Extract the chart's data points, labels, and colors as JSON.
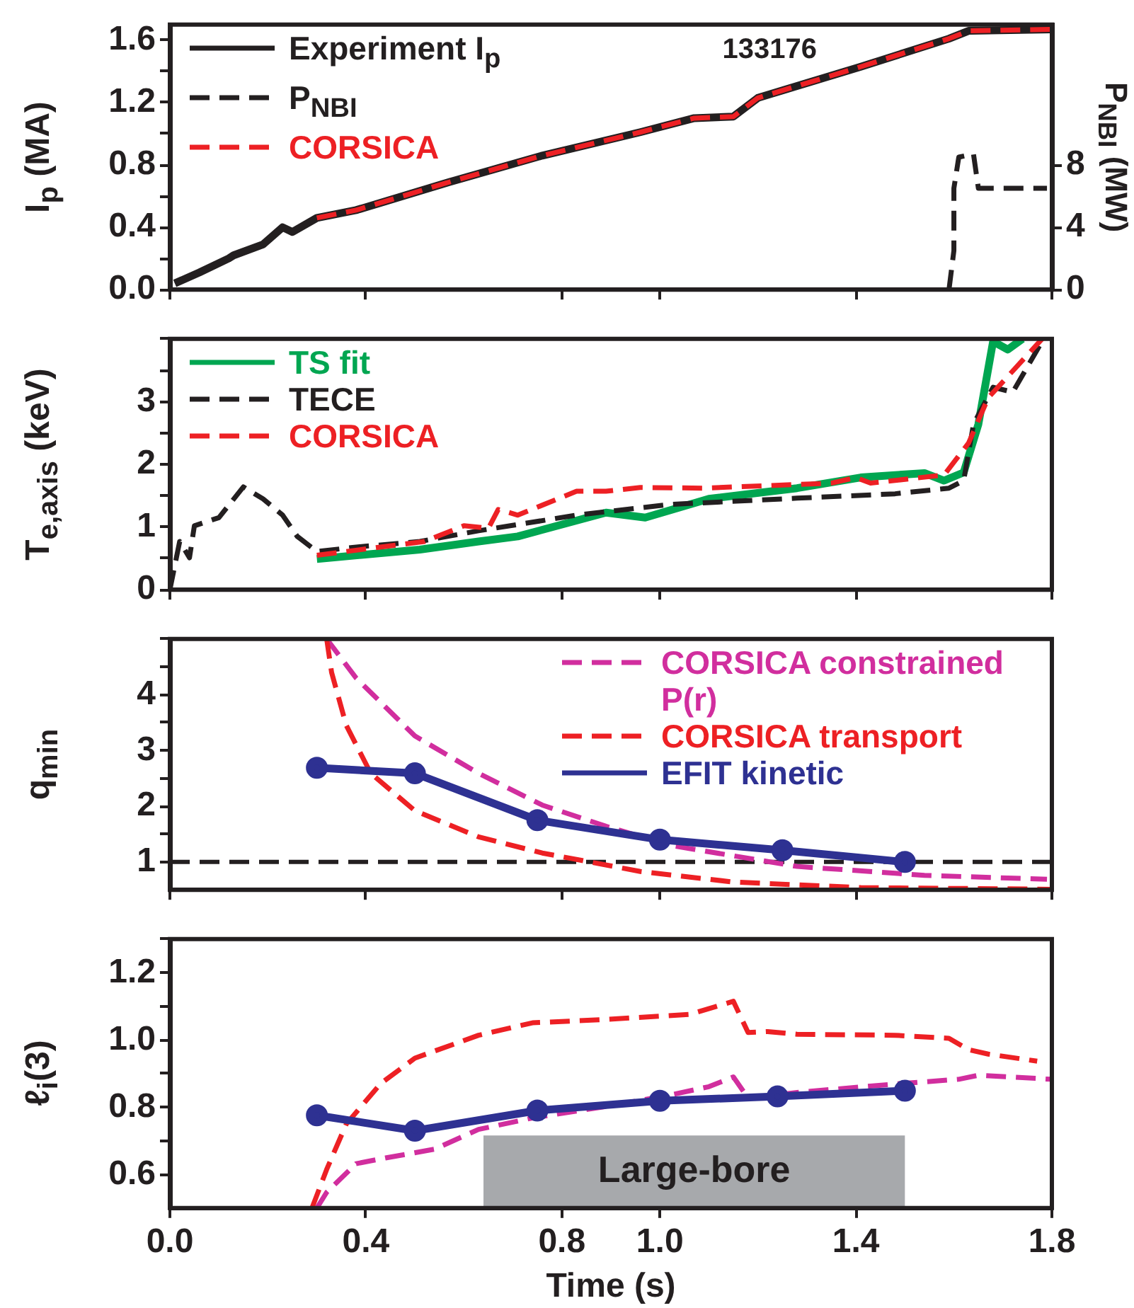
{
  "chart_data": [
    {
      "type": "line",
      "ylabel": "I$_{p}$ (MA)",
      "y2label": "P$_{NBI}$ (MW)",
      "annotations": [
        "133176"
      ],
      "xlim": [
        0,
        1.8
      ],
      "xticks": [
        {
          "value": 0,
          "label": null
        },
        {
          "value": 0.4,
          "label": null
        },
        {
          "value": 0.8,
          "label": null
        },
        {
          "value": 1.0,
          "label": null
        },
        {
          "value": 1.4,
          "label": null
        },
        {
          "value": 1.8,
          "label": null
        }
      ],
      "ylim": [
        0,
        1.7
      ],
      "yticks": [
        {
          "value": 0,
          "label": "0.0"
        },
        {
          "value": 0.2,
          "label": null
        },
        {
          "value": 0.4,
          "label": "0.4"
        },
        {
          "value": 0.6,
          "label": null
        },
        {
          "value": 0.8,
          "label": "0.8"
        },
        {
          "value": 1.0,
          "label": null
        },
        {
          "value": 1.2,
          "label": "1.2"
        },
        {
          "value": 1.4,
          "label": null
        },
        {
          "value": 1.6,
          "label": "1.6"
        }
      ],
      "y2lim": [
        0,
        17
      ],
      "y2ticks": [
        0,
        4,
        8
      ],
      "tick_labels": "y",
      "legend": "top left",
      "grid": false,
      "series": [
        {
          "name": "Experiment I$_{p}$",
          "color": "#231f20",
          "line_style": "solid",
          "marker": "none",
          "x": [
            0.01,
            0.06,
            0.12,
            0.13,
            0.19,
            0.23,
            0.25,
            0.3,
            0.38,
            0.57,
            0.76,
            0.96,
            1.07,
            1.15,
            1.2,
            1.41,
            1.59,
            1.63,
            1.8
          ],
          "values": [
            0.04,
            0.11,
            0.2,
            0.22,
            0.29,
            0.4,
            0.37,
            0.46,
            0.51,
            0.69,
            0.86,
            1.01,
            1.1,
            1.11,
            1.23,
            1.43,
            1.61,
            1.66,
            1.67
          ]
        },
        {
          "name": "P$_{NBI}$",
          "axis": "y2",
          "color": "#231f20",
          "line_style": "dashed",
          "marker": "none",
          "x": [
            1.59,
            1.6,
            1.6,
            1.61,
            1.64,
            1.65,
            1.79
          ],
          "values": [
            0,
            2.5,
            6.5,
            8.5,
            8.7,
            6.5,
            6.5
          ]
        },
        {
          "name": "CORSICA",
          "color": "#ed2024",
          "line_style": "dashed",
          "marker": "none",
          "x": [
            0.3,
            0.38,
            0.57,
            0.76,
            0.96,
            1.07,
            1.15,
            1.2,
            1.41,
            1.59,
            1.63,
            1.8
          ],
          "values": [
            0.46,
            0.51,
            0.69,
            0.86,
            1.01,
            1.1,
            1.11,
            1.23,
            1.43,
            1.61,
            1.66,
            1.67
          ]
        }
      ]
    },
    {
      "type": "line",
      "ylabel": "T$_{e,axis}$ (keV)",
      "xlim": [
        0,
        1.8
      ],
      "xticks": [
        {
          "value": 0,
          "label": null
        },
        {
          "value": 0.4,
          "label": null
        },
        {
          "value": 0.8,
          "label": null
        },
        {
          "value": 1.0,
          "label": null
        },
        {
          "value": 1.4,
          "label": null
        },
        {
          "value": 1.8,
          "label": null
        }
      ],
      "ylim": [
        0,
        4
      ],
      "yticks": [
        0,
        {
          "value": 0.5,
          "label": null
        },
        1,
        {
          "value": 1.5,
          "label": null
        },
        2,
        {
          "value": 2.5,
          "label": null
        },
        3,
        {
          "value": 3.5,
          "label": null
        },
        {
          "value": 4,
          "label": null
        }
      ],
      "tick_labels": "y",
      "legend": "top left",
      "grid": false,
      "series": [
        {
          "name": "TS fit",
          "color": "#00a651",
          "line_style": "solid",
          "marker": "none",
          "x": [
            0.3,
            0.51,
            0.63,
            0.71,
            0.89,
            0.97,
            1.1,
            1.28,
            1.41,
            1.54,
            1.58,
            1.62,
            1.65,
            1.68,
            1.71,
            1.74
          ],
          "values": [
            0.49,
            0.64,
            0.77,
            0.85,
            1.23,
            1.15,
            1.45,
            1.62,
            1.79,
            1.86,
            1.74,
            1.87,
            2.64,
            3.96,
            3.83,
            4.0
          ]
        },
        {
          "name": "TECE",
          "color": "#231f20",
          "line_style": "dashed",
          "marker": "none",
          "x": [
            0,
            0.02,
            0.04,
            0.05,
            0.1,
            0.15,
            0.19,
            0.23,
            0.26,
            0.3,
            0.38,
            0.51,
            0.63,
            0.83,
            1.02,
            1.28,
            1.48,
            1.59,
            1.62,
            1.64,
            1.68,
            1.72,
            1.78
          ],
          "values": [
            0,
            0.77,
            0.51,
            1.02,
            1.15,
            1.64,
            1.45,
            1.19,
            0.85,
            0.61,
            0.68,
            0.77,
            0.94,
            1.19,
            1.36,
            1.46,
            1.53,
            1.62,
            1.74,
            2.64,
            3.23,
            3.15,
            3.96
          ]
        },
        {
          "name": "CORSICA",
          "color": "#ed2024",
          "line_style": "dashed",
          "marker": "none",
          "x": [
            0.3,
            0.52,
            0.6,
            0.65,
            0.67,
            0.71,
            0.83,
            0.89,
            0.96,
            1.09,
            1.22,
            1.35,
            1.4,
            1.43,
            1.58,
            1.63,
            1.67,
            1.78
          ],
          "values": [
            0.55,
            0.77,
            1.02,
            0.98,
            1.28,
            1.19,
            1.57,
            1.57,
            1.63,
            1.62,
            1.66,
            1.7,
            1.79,
            1.7,
            1.83,
            2.34,
            3.06,
            4.0
          ]
        }
      ]
    },
    {
      "type": "line",
      "ylabel": "q$_{min}$",
      "xlim": [
        0,
        1.8
      ],
      "xticks": [
        {
          "value": 0,
          "label": null
        },
        {
          "value": 0.4,
          "label": null
        },
        {
          "value": 0.8,
          "label": null
        },
        {
          "value": 1.0,
          "label": null
        },
        {
          "value": 1.4,
          "label": null
        },
        {
          "value": 1.8,
          "label": null
        }
      ],
      "ylim": [
        0.5,
        5
      ],
      "yticks": [
        1,
        {
          "value": 1.5,
          "label": null
        },
        2,
        {
          "value": 2.5,
          "label": null
        },
        3,
        {
          "value": 3.5,
          "label": null
        },
        4,
        {
          "value": 4.5,
          "label": null
        },
        {
          "value": 5,
          "label": null
        }
      ],
      "tick_labels": "y",
      "legend": "top right",
      "grid": false,
      "ref_lines": [
        {
          "axis": "y",
          "value": 1,
          "color": "#231f20",
          "line_style": "dashed"
        }
      ],
      "series": [
        {
          "name": "CORSICA constrained P(r)",
          "color": "#d12e9e",
          "line_style": "dashed",
          "marker": "none",
          "x": [
            0.32,
            0.38,
            0.5,
            0.63,
            0.76,
            0.89,
            1.02,
            1.15,
            1.28,
            1.54,
            1.79
          ],
          "values": [
            5.0,
            4.3,
            3.26,
            2.59,
            2.02,
            1.64,
            1.3,
            1.11,
            0.92,
            0.76,
            0.69
          ]
        },
        {
          "name": "CORSICA transport",
          "color": "#ed2024",
          "line_style": "dashed",
          "marker": "none",
          "x": [
            0.32,
            0.33,
            0.36,
            0.41,
            0.5,
            0.63,
            0.76,
            0.96,
            1.15,
            1.41,
            1.8
          ],
          "values": [
            5.0,
            4.4,
            3.45,
            2.59,
            1.92,
            1.45,
            1.16,
            0.83,
            0.64,
            0.54,
            0.51
          ]
        },
        {
          "name": "EFIT kinetic",
          "color": "#2e3192",
          "line_style": "solid",
          "marker": "circle",
          "x": [
            0.3,
            0.5,
            0.75,
            1.0,
            1.25,
            1.5
          ],
          "values": [
            2.69,
            2.59,
            1.75,
            1.4,
            1.21,
            1.0
          ]
        }
      ]
    },
    {
      "type": "line",
      "xlabel": "Time (s)",
      "ylabel": "ℓ$_{i}$(3)",
      "xlim": [
        0,
        1.8
      ],
      "xticks": [
        {
          "value": 0,
          "label": "0.0"
        },
        {
          "value": 0.4,
          "label": "0.4"
        },
        {
          "value": 0.8,
          "label": "0.8"
        },
        {
          "value": 1.0,
          "label": "1.0"
        },
        {
          "value": 1.4,
          "label": "1.4"
        },
        {
          "value": 1.8,
          "label": "1.8"
        }
      ],
      "ylim": [
        0.5,
        1.3
      ],
      "yticks": [
        {
          "value": 0.6,
          "label": "0.6"
        },
        {
          "value": 0.7,
          "label": null
        },
        {
          "value": 0.8,
          "label": "0.8"
        },
        {
          "value": 0.9,
          "label": null
        },
        {
          "value": 1.0,
          "label": "1.0"
        },
        {
          "value": 1.1,
          "label": null
        },
        {
          "value": 1.2,
          "label": "1.2"
        },
        {
          "value": 1.3,
          "label": null
        }
      ],
      "grid": false,
      "bands": [
        {
          "axis": "x",
          "from": 0.64,
          "to": 1.5,
          "label": "Large-bore",
          "color": "#a7a9ac"
        }
      ],
      "series": [
        {
          "color": "#ed2024",
          "line_style": "dashed",
          "marker": "none",
          "x": [
            0.29,
            0.32,
            0.36,
            0.43,
            0.5,
            0.63,
            0.74,
            0.89,
            1.06,
            1.15,
            1.18,
            1.22,
            1.28,
            1.48,
            1.59,
            1.63,
            1.67,
            1.77
          ],
          "values": [
            0.5,
            0.615,
            0.75,
            0.87,
            0.946,
            1.014,
            1.051,
            1.061,
            1.076,
            1.115,
            1.022,
            1.025,
            1.017,
            1.014,
            1.005,
            0.971,
            0.958,
            0.937
          ]
        },
        {
          "color": "#d12e9e",
          "line_style": "dashed",
          "marker": "none",
          "x": [
            0.3,
            0.32,
            0.38,
            0.44,
            0.54,
            0.63,
            0.74,
            0.89,
            1.02,
            1.1,
            1.15,
            1.18,
            1.28,
            1.48,
            1.61,
            1.65,
            1.8
          ],
          "values": [
            0.5,
            0.547,
            0.632,
            0.649,
            0.675,
            0.734,
            0.768,
            0.802,
            0.836,
            0.861,
            0.89,
            0.827,
            0.844,
            0.869,
            0.883,
            0.895,
            0.883
          ]
        },
        {
          "color": "#2e3192",
          "line_style": "solid",
          "marker": "circle",
          "x": [
            0.3,
            0.5,
            0.75,
            1.0,
            1.24,
            1.5
          ],
          "values": [
            0.776,
            0.73,
            0.79,
            0.819,
            0.832,
            0.849
          ]
        }
      ]
    }
  ]
}
